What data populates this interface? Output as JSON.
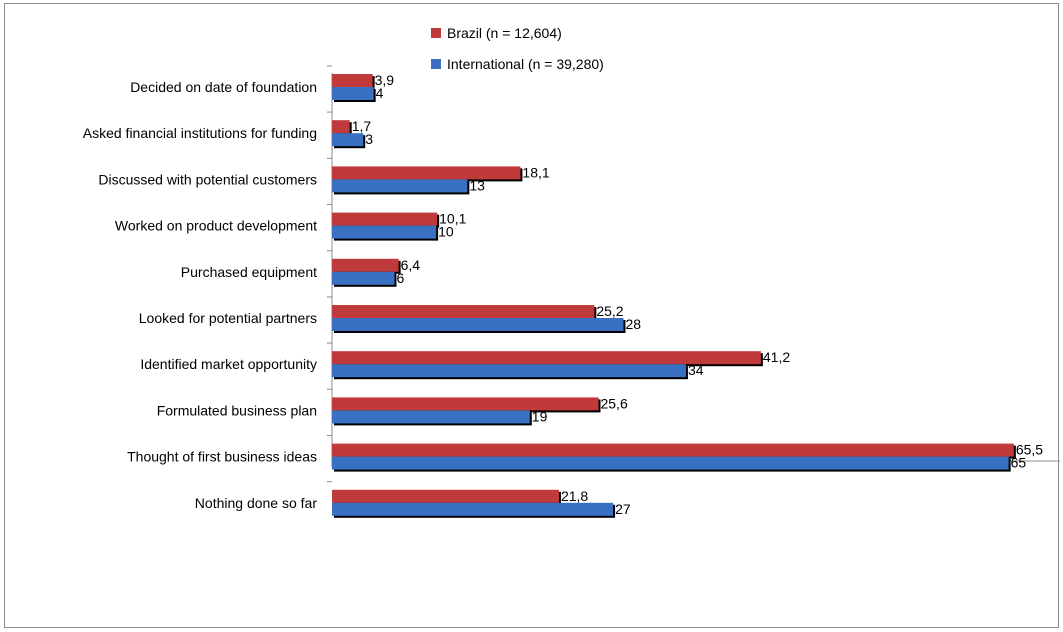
{
  "chart_data": {
    "type": "bar",
    "orientation": "horizontal",
    "categories": [
      "Decided on date of foundation",
      "Asked financial institutions for funding",
      "Discussed with potential customers",
      "Worked on product development",
      "Purchased equipment",
      "Looked for potential partners",
      "Identified market opportunity",
      "Formulated business plan",
      "Thought of first business ideas",
      "Nothing done so far"
    ],
    "series": [
      {
        "name": "Brazil (n = 12,604)",
        "color": "#c0393b",
        "values": [
          3.9,
          1.7,
          18.1,
          10.1,
          6.4,
          25.2,
          41.2,
          25.6,
          65.5,
          21.8
        ],
        "labels": [
          "3,9",
          "1,7",
          "18,1",
          "10,1",
          "6,4",
          "25,2",
          "41,2",
          "25,6",
          "65,5",
          "21,8"
        ]
      },
      {
        "name": "International (n = 39,280)",
        "color": "#3a70c2",
        "values": [
          4,
          3,
          13,
          10,
          6,
          28,
          34,
          19,
          65,
          27
        ],
        "labels": [
          "4",
          "3",
          "13",
          "10",
          "6",
          "28",
          "34",
          "19",
          "65",
          "27"
        ]
      }
    ],
    "xlim": [
      0,
      70
    ],
    "x_ticks": [
      0,
      10,
      20,
      30,
      40,
      50,
      60,
      70
    ],
    "grid": false,
    "legend": "top-center"
  }
}
